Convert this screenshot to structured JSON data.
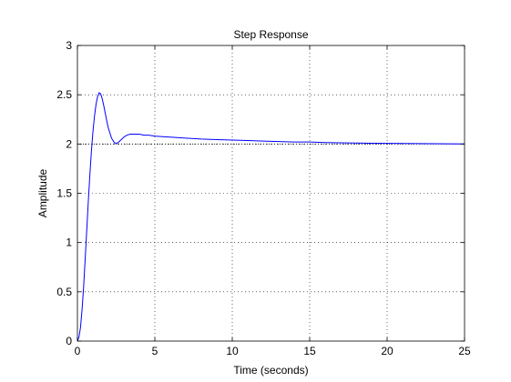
{
  "chart_data": {
    "type": "line",
    "title": "Step Response",
    "xlabel": "Time (seconds)",
    "ylabel": "Amplitude",
    "xlim": [
      0,
      25
    ],
    "ylim": [
      0,
      3
    ],
    "x_ticks": [
      0,
      5,
      10,
      15,
      20,
      25
    ],
    "x_tick_labels": [
      "0",
      "5",
      "10",
      "15",
      "20",
      "25"
    ],
    "y_ticks": [
      0,
      0.5,
      1,
      1.5,
      2,
      2.5,
      3
    ],
    "y_tick_labels": [
      "0",
      "0.5",
      "1",
      "1.5",
      "2",
      "2.5",
      "3"
    ],
    "grid": true,
    "colors": {
      "series": "#0000ff",
      "reference": "#000000"
    },
    "series": [
      {
        "x": [
          0,
          0.1,
          0.2,
          0.3,
          0.4,
          0.5,
          0.6,
          0.7,
          0.8,
          0.9,
          1.0,
          1.1,
          1.2,
          1.3,
          1.4,
          1.5,
          1.6,
          1.7,
          1.8,
          1.9,
          2.0,
          2.2,
          2.4,
          2.6,
          2.8,
          3.0,
          3.2,
          3.4,
          3.6,
          3.8,
          4.0,
          4.3,
          4.6,
          5.0,
          5.5,
          6,
          7,
          8,
          9,
          10,
          11,
          12,
          13,
          14,
          15,
          16,
          17,
          18,
          19,
          20,
          21,
          22,
          23,
          24,
          25
        ],
        "y": [
          0,
          0.04,
          0.14,
          0.32,
          0.55,
          0.83,
          1.12,
          1.41,
          1.68,
          1.92,
          2.12,
          2.28,
          2.4,
          2.48,
          2.52,
          2.51,
          2.46,
          2.39,
          2.31,
          2.23,
          2.16,
          2.06,
          2.01,
          2.01,
          2.04,
          2.07,
          2.09,
          2.1,
          2.1,
          2.1,
          2.1,
          2.09,
          2.09,
          2.08,
          2.075,
          2.07,
          2.06,
          2.05,
          2.045,
          2.04,
          2.035,
          2.03,
          2.025,
          2.02,
          2.02,
          2.015,
          2.012,
          2.01,
          2.008,
          2.006,
          2.005,
          2.004,
          2.003,
          2.002,
          2.001
        ]
      }
    ],
    "reference": {
      "y": 2
    }
  }
}
